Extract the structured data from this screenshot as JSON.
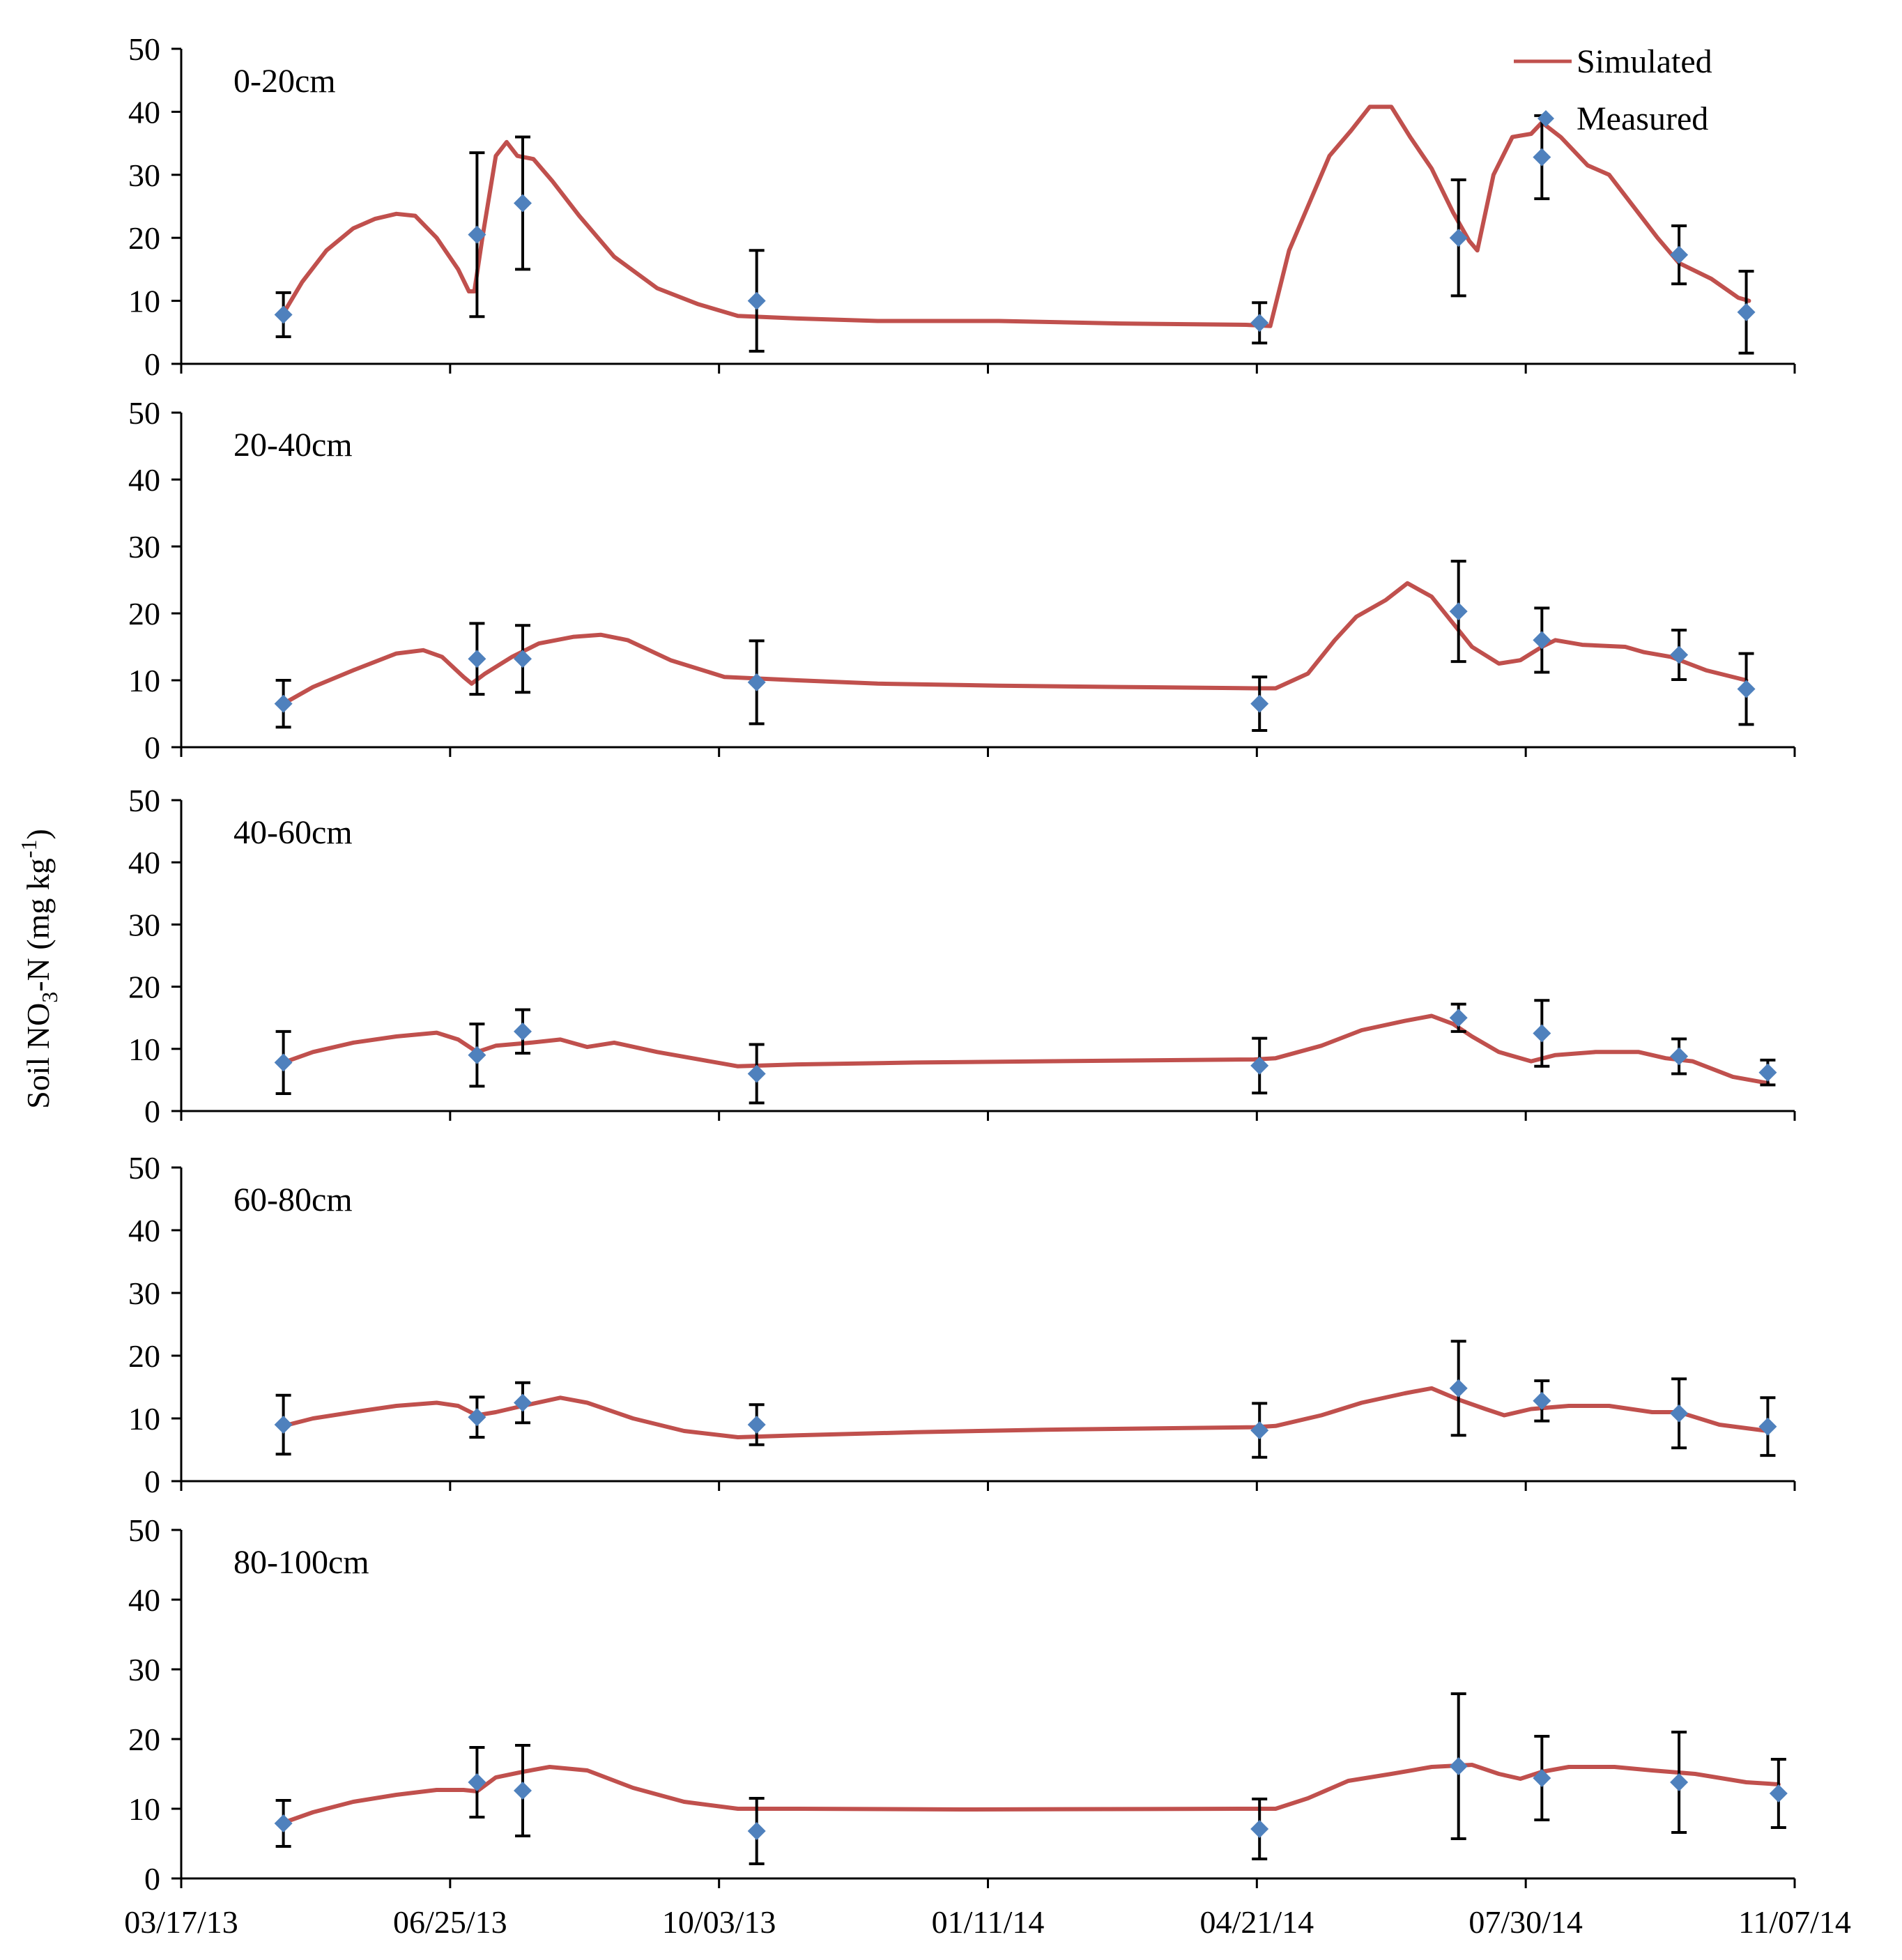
{
  "figure": {
    "ylabel_main": "Soil NO",
    "ylabel_sub": "3",
    "ylabel_mid": "-N (mg kg",
    "ylabel_sup": "-1",
    "ylabel_end": ")"
  },
  "colors": {
    "simulated": "#C0504D",
    "measured": "#4F81BD",
    "axis": "#000000"
  },
  "chart_data": {
    "type": "line",
    "xlabel": "",
    "x_axis_type": "date",
    "xlim": [
      "2013-03-17",
      "2014-11-07"
    ],
    "x_ticks": [
      "03/17/13",
      "06/25/13",
      "10/03/13",
      "01/11/14",
      "04/21/14",
      "07/30/14",
      "11/07/14"
    ],
    "ylim": [
      0,
      50
    ],
    "y_ticks": [
      "0",
      "10",
      "20",
      "30",
      "40",
      "50"
    ],
    "legend": {
      "placement": "top-right",
      "entries": [
        {
          "name": "Simulated",
          "marker": "line"
        },
        {
          "name": "Measured",
          "marker": "diamond"
        }
      ]
    },
    "panels": [
      {
        "title": "0-20cm",
        "simulated": [
          [
            "2013-04-24",
            8
          ],
          [
            "2013-05-01",
            13
          ],
          [
            "2013-05-10",
            18
          ],
          [
            "2013-05-20",
            21.5
          ],
          [
            "2013-05-28",
            23
          ],
          [
            "2013-06-05",
            23.8
          ],
          [
            "2013-06-12",
            23.5
          ],
          [
            "2013-06-20",
            20
          ],
          [
            "2013-06-28",
            15
          ],
          [
            "2013-07-02",
            11.5
          ],
          [
            "2013-07-04",
            11.5
          ],
          [
            "2013-07-07",
            20
          ],
          [
            "2013-07-12",
            33
          ],
          [
            "2013-07-16",
            35.2
          ],
          [
            "2013-07-20",
            33
          ],
          [
            "2013-07-26",
            32.5
          ],
          [
            "2013-08-02",
            29
          ],
          [
            "2013-08-12",
            23.5
          ],
          [
            "2013-08-25",
            17
          ],
          [
            "2013-09-10",
            12
          ],
          [
            "2013-09-25",
            9.5
          ],
          [
            "2013-10-10",
            7.6
          ],
          [
            "2013-11-01",
            7.2
          ],
          [
            "2013-12-01",
            6.8
          ],
          [
            "2014-01-15",
            6.8
          ],
          [
            "2014-03-01",
            6.4
          ],
          [
            "2014-04-17",
            6.2
          ],
          [
            "2014-04-26",
            6
          ],
          [
            "2014-05-03",
            18
          ],
          [
            "2014-05-10",
            25
          ],
          [
            "2014-05-18",
            33
          ],
          [
            "2014-05-26",
            37
          ],
          [
            "2014-06-02",
            40.8
          ],
          [
            "2014-06-10",
            40.8
          ],
          [
            "2014-06-17",
            36
          ],
          [
            "2014-06-25",
            31
          ],
          [
            "2014-07-03",
            24
          ],
          [
            "2014-07-09",
            19.5
          ],
          [
            "2014-07-12",
            18
          ],
          [
            "2014-07-18",
            30
          ],
          [
            "2014-07-25",
            36
          ],
          [
            "2014-08-01",
            36.5
          ],
          [
            "2014-08-05",
            38.3
          ],
          [
            "2014-08-12",
            36
          ],
          [
            "2014-08-22",
            31.5
          ],
          [
            "2014-08-30",
            30
          ],
          [
            "2014-09-08",
            25
          ],
          [
            "2014-09-17",
            20
          ],
          [
            "2014-09-25",
            16
          ],
          [
            "2014-10-07",
            13.5
          ],
          [
            "2014-10-17",
            10.5
          ],
          [
            "2014-10-21",
            10
          ]
        ],
        "measured": [
          {
            "date": "2013-04-24",
            "value": 7.8,
            "err": 3.5
          },
          {
            "date": "2013-07-05",
            "value": 20.5,
            "err": 13
          },
          {
            "date": "2013-07-22",
            "value": 25.5,
            "err": 10.5
          },
          {
            "date": "2013-10-17",
            "value": 10,
            "err": 8
          },
          {
            "date": "2014-04-22",
            "value": 6.5,
            "err": 3.2
          },
          {
            "date": "2014-07-05",
            "value": 20,
            "err": 9.2
          },
          {
            "date": "2014-08-05",
            "value": 32.8,
            "err": 6.6
          },
          {
            "date": "2014-09-25",
            "value": 17.3,
            "err": 4.6
          },
          {
            "date": "2014-10-20",
            "value": 8.2,
            "err": 6.5
          }
        ]
      },
      {
        "title": "20-40cm",
        "simulated": [
          [
            "2013-04-24",
            6.5
          ],
          [
            "2013-05-05",
            9
          ],
          [
            "2013-05-20",
            11.5
          ],
          [
            "2013-06-05",
            14
          ],
          [
            "2013-06-15",
            14.5
          ],
          [
            "2013-06-22",
            13.5
          ],
          [
            "2013-06-30",
            10.5
          ],
          [
            "2013-07-03",
            9.5
          ],
          [
            "2013-07-08",
            11
          ],
          [
            "2013-07-18",
            13.5
          ],
          [
            "2013-07-28",
            15.5
          ],
          [
            "2013-08-10",
            16.5
          ],
          [
            "2013-08-20",
            16.8
          ],
          [
            "2013-08-30",
            16
          ],
          [
            "2013-09-15",
            13
          ],
          [
            "2013-10-05",
            10.5
          ],
          [
            "2013-11-01",
            10
          ],
          [
            "2013-12-01",
            9.5
          ],
          [
            "2014-01-15",
            9.2
          ],
          [
            "2014-03-01",
            9
          ],
          [
            "2014-04-20",
            8.8
          ],
          [
            "2014-04-28",
            8.8
          ],
          [
            "2014-05-10",
            11
          ],
          [
            "2014-05-20",
            16
          ],
          [
            "2014-05-28",
            19.5
          ],
          [
            "2014-06-08",
            22
          ],
          [
            "2014-06-16",
            24.5
          ],
          [
            "2014-06-25",
            22.5
          ],
          [
            "2014-07-02",
            19
          ],
          [
            "2014-07-10",
            15
          ],
          [
            "2014-07-20",
            12.5
          ],
          [
            "2014-07-28",
            13
          ],
          [
            "2014-08-05",
            15
          ],
          [
            "2014-08-10",
            16
          ],
          [
            "2014-08-20",
            15.3
          ],
          [
            "2014-09-05",
            15
          ],
          [
            "2014-09-12",
            14.2
          ],
          [
            "2014-09-22",
            13.5
          ],
          [
            "2014-10-05",
            11.5
          ],
          [
            "2014-10-20",
            10
          ]
        ],
        "measured": [
          {
            "date": "2013-04-24",
            "value": 6.5,
            "err": 3.5
          },
          {
            "date": "2013-07-05",
            "value": 13.2,
            "err": 5.3
          },
          {
            "date": "2013-07-22",
            "value": 13.2,
            "err": 5
          },
          {
            "date": "2013-10-17",
            "value": 9.7,
            "err": 6.2
          },
          {
            "date": "2014-04-22",
            "value": 6.5,
            "err": 4
          },
          {
            "date": "2014-07-05",
            "value": 20.3,
            "err": 7.5
          },
          {
            "date": "2014-08-05",
            "value": 16,
            "err": 4.8
          },
          {
            "date": "2014-09-25",
            "value": 13.8,
            "err": 3.7
          },
          {
            "date": "2014-10-20",
            "value": 8.7,
            "err": 5.3
          }
        ]
      },
      {
        "title": "40-60cm",
        "simulated": [
          [
            "2013-04-24",
            7.8
          ],
          [
            "2013-05-05",
            9.5
          ],
          [
            "2013-05-20",
            11
          ],
          [
            "2013-06-05",
            12
          ],
          [
            "2013-06-20",
            12.6
          ],
          [
            "2013-06-28",
            11.5
          ],
          [
            "2013-07-05",
            9.5
          ],
          [
            "2013-07-12",
            10.5
          ],
          [
            "2013-07-25",
            11
          ],
          [
            "2013-08-05",
            11.5
          ],
          [
            "2013-08-15",
            10.3
          ],
          [
            "2013-08-25",
            11
          ],
          [
            "2013-09-10",
            9.5
          ],
          [
            "2013-10-10",
            7.2
          ],
          [
            "2013-11-01",
            7.5
          ],
          [
            "2013-12-15",
            7.8
          ],
          [
            "2014-02-01",
            8
          ],
          [
            "2014-04-20",
            8.3
          ],
          [
            "2014-04-28",
            8.5
          ],
          [
            "2014-05-15",
            10.5
          ],
          [
            "2014-05-30",
            13
          ],
          [
            "2014-06-15",
            14.5
          ],
          [
            "2014-06-25",
            15.3
          ],
          [
            "2014-07-03",
            14
          ],
          [
            "2014-07-10",
            12
          ],
          [
            "2014-07-20",
            9.5
          ],
          [
            "2014-08-01",
            8
          ],
          [
            "2014-08-10",
            9
          ],
          [
            "2014-08-25",
            9.5
          ],
          [
            "2014-09-10",
            9.5
          ],
          [
            "2014-09-20",
            8.5
          ],
          [
            "2014-09-30",
            8
          ],
          [
            "2014-10-15",
            5.5
          ],
          [
            "2014-10-28",
            4.5
          ]
        ],
        "measured": [
          {
            "date": "2013-04-24",
            "value": 7.8,
            "err": 5
          },
          {
            "date": "2013-07-05",
            "value": 9,
            "err": 5
          },
          {
            "date": "2013-07-22",
            "value": 12.8,
            "err": 3.5
          },
          {
            "date": "2013-10-17",
            "value": 6,
            "err": 4.7
          },
          {
            "date": "2014-04-22",
            "value": 7.3,
            "err": 4.4
          },
          {
            "date": "2014-07-05",
            "value": 15,
            "err": 2.2
          },
          {
            "date": "2014-08-05",
            "value": 12.5,
            "err": 5.3
          },
          {
            "date": "2014-09-25",
            "value": 8.8,
            "err": 2.8
          },
          {
            "date": "2014-10-28",
            "value": 6.2,
            "err": 2
          }
        ]
      },
      {
        "title": "60-80cm",
        "simulated": [
          [
            "2013-04-24",
            8.8
          ],
          [
            "2013-05-05",
            10
          ],
          [
            "2013-05-20",
            11
          ],
          [
            "2013-06-05",
            12
          ],
          [
            "2013-06-20",
            12.5
          ],
          [
            "2013-06-28",
            12
          ],
          [
            "2013-07-05",
            10.5
          ],
          [
            "2013-07-12",
            11
          ],
          [
            "2013-07-22",
            12
          ],
          [
            "2013-08-05",
            13.3
          ],
          [
            "2013-08-15",
            12.5
          ],
          [
            "2013-09-01",
            10
          ],
          [
            "2013-09-20",
            8
          ],
          [
            "2013-10-10",
            7
          ],
          [
            "2013-11-01",
            7.3
          ],
          [
            "2013-12-15",
            7.8
          ],
          [
            "2014-02-01",
            8.2
          ],
          [
            "2014-04-20",
            8.6
          ],
          [
            "2014-04-28",
            8.8
          ],
          [
            "2014-05-15",
            10.5
          ],
          [
            "2014-05-30",
            12.5
          ],
          [
            "2014-06-15",
            14
          ],
          [
            "2014-06-25",
            14.8
          ],
          [
            "2014-07-05",
            13
          ],
          [
            "2014-07-15",
            11.5
          ],
          [
            "2014-07-22",
            10.5
          ],
          [
            "2014-08-01",
            11.5
          ],
          [
            "2014-08-15",
            12
          ],
          [
            "2014-08-30",
            12
          ],
          [
            "2014-09-15",
            11
          ],
          [
            "2014-09-25",
            11
          ],
          [
            "2014-10-10",
            9
          ],
          [
            "2014-10-28",
            8
          ]
        ],
        "measured": [
          {
            "date": "2013-04-24",
            "value": 9,
            "err": 4.7
          },
          {
            "date": "2013-07-05",
            "value": 10.2,
            "err": 3.2
          },
          {
            "date": "2013-07-22",
            "value": 12.5,
            "err": 3.2
          },
          {
            "date": "2013-10-17",
            "value": 9,
            "err": 3.2
          },
          {
            "date": "2014-04-22",
            "value": 8.1,
            "err": 4.3
          },
          {
            "date": "2014-07-05",
            "value": 14.8,
            "err": 7.5
          },
          {
            "date": "2014-08-05",
            "value": 12.8,
            "err": 3.2
          },
          {
            "date": "2014-09-25",
            "value": 10.8,
            "err": 5.5
          },
          {
            "date": "2014-10-28",
            "value": 8.7,
            "err": 4.6
          }
        ]
      },
      {
        "title": "80-100cm",
        "simulated": [
          [
            "2013-04-24",
            8
          ],
          [
            "2013-05-05",
            9.5
          ],
          [
            "2013-05-20",
            11
          ],
          [
            "2013-06-05",
            12
          ],
          [
            "2013-06-20",
            12.7
          ],
          [
            "2013-06-30",
            12.7
          ],
          [
            "2013-07-05",
            12.5
          ],
          [
            "2013-07-12",
            14.5
          ],
          [
            "2013-07-22",
            15.3
          ],
          [
            "2013-08-01",
            16
          ],
          [
            "2013-08-15",
            15.5
          ],
          [
            "2013-09-01",
            13
          ],
          [
            "2013-09-20",
            11
          ],
          [
            "2013-10-10",
            10
          ],
          [
            "2013-11-01",
            10
          ],
          [
            "2014-01-01",
            9.9
          ],
          [
            "2014-04-20",
            10
          ],
          [
            "2014-04-28",
            10
          ],
          [
            "2014-05-10",
            11.5
          ],
          [
            "2014-05-25",
            14
          ],
          [
            "2014-06-10",
            15
          ],
          [
            "2014-06-25",
            16
          ],
          [
            "2014-07-10",
            16.3
          ],
          [
            "2014-07-20",
            15
          ],
          [
            "2014-07-28",
            14.3
          ],
          [
            "2014-08-05",
            15.3
          ],
          [
            "2014-08-15",
            16
          ],
          [
            "2014-09-01",
            16
          ],
          [
            "2014-09-15",
            15.5
          ],
          [
            "2014-10-01",
            15
          ],
          [
            "2014-10-20",
            13.8
          ],
          [
            "2014-11-01",
            13.5
          ]
        ],
        "measured": [
          {
            "date": "2013-04-24",
            "value": 7.9,
            "err": 3.3
          },
          {
            "date": "2013-07-05",
            "value": 13.8,
            "err": 5
          },
          {
            "date": "2013-07-22",
            "value": 12.6,
            "err": 6.5
          },
          {
            "date": "2013-10-17",
            "value": 6.8,
            "err": 4.7
          },
          {
            "date": "2014-04-22",
            "value": 7.1,
            "err": 4.3
          },
          {
            "date": "2014-07-05",
            "value": 16.1,
            "err": 10.4
          },
          {
            "date": "2014-08-05",
            "value": 14.4,
            "err": 6
          },
          {
            "date": "2014-09-25",
            "value": 13.8,
            "err": 7.2
          },
          {
            "date": "2014-11-01",
            "value": 12.2,
            "err": 4.9
          }
        ]
      }
    ]
  }
}
